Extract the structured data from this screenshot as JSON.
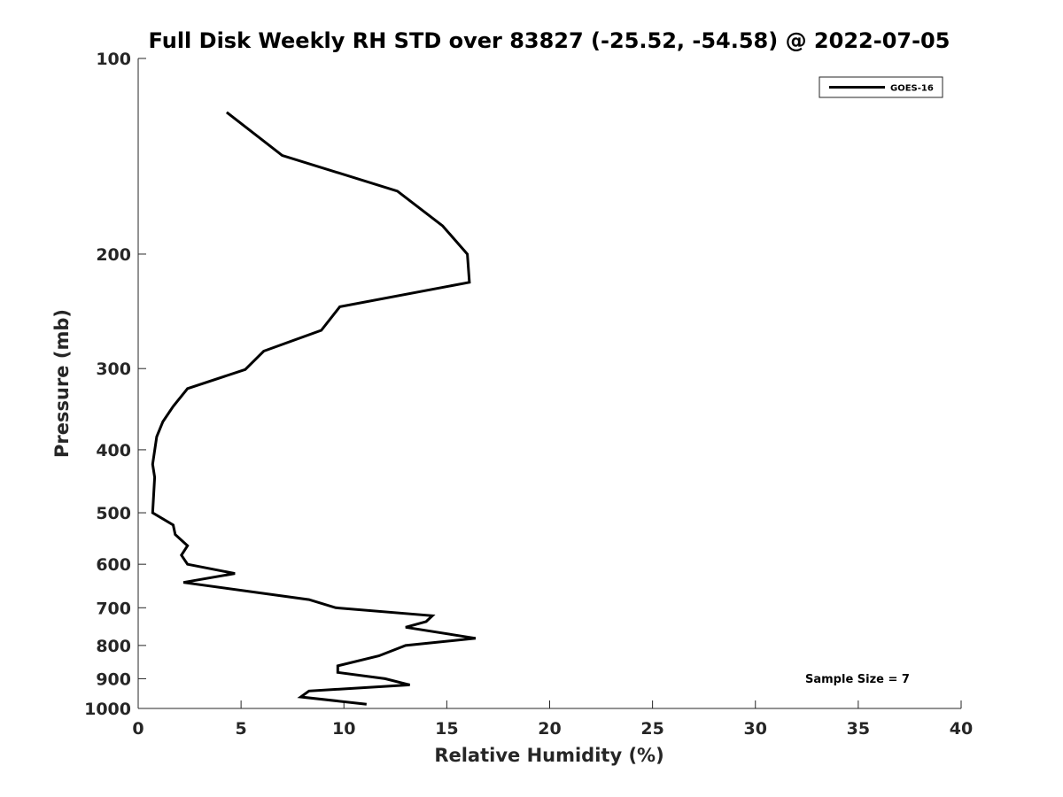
{
  "chart_data": {
    "type": "line",
    "title": "Full Disk Weekly RH STD over 83827 (-25.52, -54.58) @ 2022-07-05",
    "xlabel": "Relative Humidity (%)",
    "ylabel": "Pressure (mb)",
    "xlim": [
      0,
      40
    ],
    "ylim": [
      100,
      1000
    ],
    "y_scale": "log",
    "y_reversed": true,
    "x_ticks": [
      0,
      5,
      10,
      15,
      20,
      25,
      30,
      35,
      40
    ],
    "y_ticks": [
      100,
      200,
      300,
      400,
      500,
      600,
      700,
      800,
      900,
      1000
    ],
    "legend": {
      "location": "top-right",
      "entries": [
        "GOES-16"
      ]
    },
    "annotation": "Sample Size = 7",
    "series": [
      {
        "name": "GOES-16",
        "color": "#000000",
        "points": [
          {
            "x": 4.3,
            "p": 121
          },
          {
            "x": 7.0,
            "p": 141
          },
          {
            "x": 12.6,
            "p": 160
          },
          {
            "x": 14.8,
            "p": 181
          },
          {
            "x": 16.0,
            "p": 200
          },
          {
            "x": 16.1,
            "p": 221
          },
          {
            "x": 9.8,
            "p": 241
          },
          {
            "x": 8.9,
            "p": 262
          },
          {
            "x": 6.1,
            "p": 282
          },
          {
            "x": 5.2,
            "p": 301
          },
          {
            "x": 2.4,
            "p": 322
          },
          {
            "x": 1.7,
            "p": 343
          },
          {
            "x": 1.2,
            "p": 362
          },
          {
            "x": 0.9,
            "p": 382
          },
          {
            "x": 0.7,
            "p": 421
          },
          {
            "x": 0.8,
            "p": 441
          },
          {
            "x": 0.7,
            "p": 500
          },
          {
            "x": 1.7,
            "p": 522
          },
          {
            "x": 1.8,
            "p": 540
          },
          {
            "x": 2.4,
            "p": 562
          },
          {
            "x": 2.1,
            "p": 581
          },
          {
            "x": 2.4,
            "p": 600
          },
          {
            "x": 4.7,
            "p": 620
          },
          {
            "x": 2.2,
            "p": 640
          },
          {
            "x": 8.3,
            "p": 680
          },
          {
            "x": 9.6,
            "p": 700
          },
          {
            "x": 14.3,
            "p": 720
          },
          {
            "x": 14.0,
            "p": 735
          },
          {
            "x": 13.0,
            "p": 750
          },
          {
            "x": 16.4,
            "p": 780
          },
          {
            "x": 13.0,
            "p": 800
          },
          {
            "x": 11.7,
            "p": 830
          },
          {
            "x": 9.7,
            "p": 860
          },
          {
            "x": 9.7,
            "p": 880
          },
          {
            "x": 12.0,
            "p": 900
          },
          {
            "x": 13.2,
            "p": 920
          },
          {
            "x": 8.3,
            "p": 940
          },
          {
            "x": 7.9,
            "p": 960
          },
          {
            "x": 11.1,
            "p": 985
          }
        ]
      }
    ]
  }
}
